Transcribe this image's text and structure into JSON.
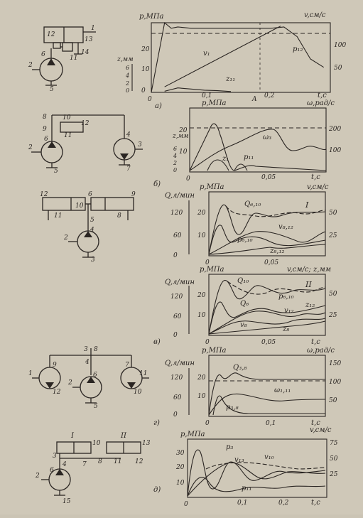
{
  "chart_data": [
    {
      "id": "a",
      "type": "line",
      "panel_label": "а)",
      "xlabel": "t,c",
      "x_ticks": [
        "0",
        "0,1",
        "A",
        "0,2"
      ],
      "left_axes": [
        {
          "label": "p,МПа",
          "ticks": [
            "0",
            "10",
            "20"
          ]
        },
        {
          "label": "z,мм",
          "ticks": [
            "0",
            "2",
            "4",
            "6"
          ]
        }
      ],
      "right_axes": [
        {
          "label": "v,см/с",
          "ticks": [
            "50",
            "100"
          ]
        }
      ],
      "xlim": [
        0,
        0.27
      ],
      "ylim_p": [
        0,
        25
      ],
      "dashed_ref": 23,
      "series": [
        {
          "name": "v₁",
          "x": [
            0.02,
            0.195
          ],
          "y": [
            2,
            23.8
          ]
        },
        {
          "name": "p₁₂",
          "x": [
            0.0,
            0.02,
            0.03,
            0.04,
            0.06,
            0.1,
            0.14,
            0.18,
            0.2,
            0.22,
            0.24,
            0.26
          ],
          "y": [
            0,
            25,
            23,
            23.5,
            23,
            23,
            23,
            23,
            23.5,
            20,
            12,
            9
          ]
        },
        {
          "name": "z₁₁",
          "x": [
            0.02,
            0.04,
            0.06,
            0.08,
            0.1,
            0.12
          ],
          "y": [
            0.4,
            1.6,
            1.2,
            0.8,
            0.6,
            0.3
          ]
        }
      ],
      "callouts": [
        {
          "text": "1",
          "target": "a-schematic"
        },
        {
          "text": "12",
          "target": "a-schematic"
        },
        {
          "text": "13",
          "target": "a-schematic"
        },
        {
          "text": "14",
          "target": "a-schematic"
        },
        {
          "text": "11",
          "target": "a-schematic"
        },
        {
          "text": "6",
          "target": "a-schematic"
        },
        {
          "text": "2",
          "target": "a-schematic"
        },
        {
          "text": "5",
          "target": "a-schematic"
        }
      ]
    },
    {
      "id": "b",
      "type": "line",
      "panel_label": "б)",
      "xlabel": "t,c",
      "x_ticks": [
        "0",
        "0,05"
      ],
      "left_axes": [
        {
          "label": "p,МПа",
          "ticks": [
            "10",
            "20"
          ]
        },
        {
          "label": "z,мм",
          "ticks": [
            "0",
            "2",
            "4",
            "6"
          ]
        }
      ],
      "right_axes": [
        {
          "label": "ω,рад/с",
          "ticks": [
            "100",
            "200"
          ]
        }
      ],
      "xlim": [
        0,
        0.1
      ],
      "series": [
        {
          "name": "ω₃"
        },
        {
          "name": "z₁"
        },
        {
          "name": "p₁₁"
        }
      ],
      "callouts": [
        {
          "text": "8"
        },
        {
          "text": "9"
        },
        {
          "text": "10"
        },
        {
          "text": "11"
        },
        {
          "text": "12"
        },
        {
          "text": "2"
        },
        {
          "text": "6"
        },
        {
          "text": "5"
        },
        {
          "text": "4"
        },
        {
          "text": "3"
        },
        {
          "text": "7"
        }
      ]
    },
    {
      "id": "v1",
      "type": "line",
      "panel_label": "",
      "roman": "I",
      "xlabel": "",
      "x_ticks": [
        "0",
        "0,05"
      ],
      "left_axes": [
        {
          "label": "Q,л/мин",
          "ticks": [
            "0",
            "60",
            "120"
          ]
        },
        {
          "label": "p,МПа",
          "ticks": [
            "10",
            "20"
          ]
        }
      ],
      "right_axes": [
        {
          "label": "v,см/с",
          "ticks": [
            "25",
            "50"
          ]
        }
      ],
      "series": [
        {
          "name": "Q₆,₁₀"
        },
        {
          "name": "v₈,₁₂"
        },
        {
          "name": "p₆,₁₀"
        },
        {
          "name": "z₈,₁₂"
        }
      ],
      "callouts": [
        {
          "text": "12"
        },
        {
          "text": "11"
        },
        {
          "text": "10"
        },
        {
          "text": "6"
        },
        {
          "text": "9"
        },
        {
          "text": "8"
        },
        {
          "text": "5"
        },
        {
          "text": "4"
        },
        {
          "text": "2"
        },
        {
          "text": "3"
        }
      ]
    },
    {
      "id": "v2",
      "type": "line",
      "panel_label": "в)",
      "roman": "II",
      "xlabel": "t,c",
      "x_ticks": [
        "0",
        "0,05"
      ],
      "left_axes": [
        {
          "label": "Q,л/мин",
          "ticks": [
            "0",
            "60",
            "120"
          ]
        },
        {
          "label": "p,МПа",
          "ticks": [
            "10",
            "20"
          ]
        }
      ],
      "right_axes": [
        {
          "label": "v,см/с; z,мм",
          "ticks": [
            "25",
            "50"
          ]
        }
      ],
      "series": [
        {
          "name": "Q₁₀"
        },
        {
          "name": "Q₆"
        },
        {
          "name": "p₆,₁₀"
        },
        {
          "name": "v₁₂"
        },
        {
          "name": "z₁₂"
        },
        {
          "name": "v₈"
        },
        {
          "name": "z₈"
        }
      ]
    },
    {
      "id": "g",
      "type": "line",
      "panel_label": "г)",
      "xlabel": "t,c",
      "x_ticks": [
        "0",
        "0,1"
      ],
      "left_axes": [
        {
          "label": "Q,л/мин",
          "ticks": [
            "0",
            "60",
            "120"
          ]
        },
        {
          "label": "p,МПа",
          "ticks": [
            "10",
            "20"
          ]
        }
      ],
      "right_axes": [
        {
          "label": "ω,рад/с",
          "ticks": [
            "50",
            "100",
            "150"
          ]
        }
      ],
      "series": [
        {
          "name": "Q₃,₈"
        },
        {
          "name": "ω₁,₁₁"
        },
        {
          "name": "p₃,₈"
        }
      ],
      "callouts": [
        {
          "text": "3"
        },
        {
          "text": "8"
        },
        {
          "text": "4"
        },
        {
          "text": "1"
        },
        {
          "text": "9"
        },
        {
          "text": "7"
        },
        {
          "text": "12"
        },
        {
          "text": "6"
        },
        {
          "text": "11"
        },
        {
          "text": "2"
        },
        {
          "text": "10"
        },
        {
          "text": "5"
        }
      ]
    },
    {
      "id": "d",
      "type": "line",
      "panel_label": "д)",
      "xlabel": "t,c",
      "x_ticks": [
        "0",
        "0,1",
        "0,2"
      ],
      "left_axes": [
        {
          "label": "p,МПа",
          "ticks": [
            "10",
            "20",
            "30"
          ]
        }
      ],
      "right_axes": [
        {
          "label": "v,см/с",
          "ticks": [
            "25",
            "50",
            "75"
          ]
        }
      ],
      "series": [
        {
          "name": "p₃"
        },
        {
          "name": "v₁₃"
        },
        {
          "name": "v₁₀"
        },
        {
          "name": "p₁₁"
        }
      ],
      "callouts": [
        {
          "text": "I"
        },
        {
          "text": "II"
        },
        {
          "text": "10"
        },
        {
          "text": "13"
        },
        {
          "text": "3"
        },
        {
          "text": "4"
        },
        {
          "text": "7"
        },
        {
          "text": "11"
        },
        {
          "text": "12"
        },
        {
          "text": "6"
        },
        {
          "text": "8"
        },
        {
          "text": "2"
        },
        {
          "text": "15"
        }
      ]
    }
  ],
  "colors": {
    "ink": "#2a2522",
    "paper": "#cfc8b8"
  }
}
